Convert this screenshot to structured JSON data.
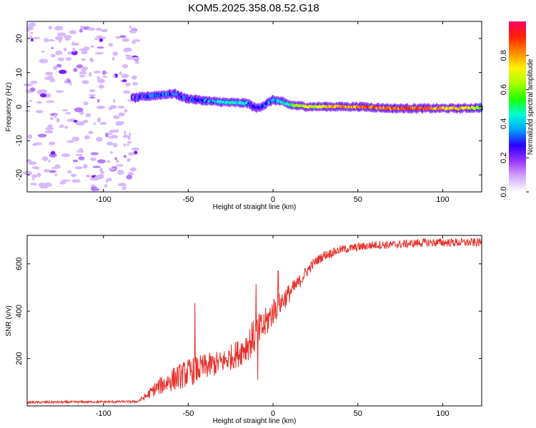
{
  "figure_title": "KOM5.2025.358.08.52.G18",
  "chart_data": [
    {
      "type": "heatmap",
      "title": "KOM5.2025.358.08.52.G18",
      "xlabel": "Height of straight line (km)",
      "ylabel": "Frequency (Hz)",
      "xlim": [
        -145,
        123
      ],
      "ylim": [
        -25,
        25
      ],
      "x_ticks": [
        -100,
        -50,
        0,
        50,
        100
      ],
      "y_ticks": [
        -20,
        -10,
        0,
        10,
        20
      ],
      "x_tick_labels": [
        "-100",
        "-50",
        "0",
        "50",
        "100"
      ],
      "y_tick_labels": [
        "-20",
        "-10",
        "0",
        "10",
        "20"
      ],
      "colorbar": {
        "label": "Normalized spectral amplitude",
        "range": [
          0,
          1
        ],
        "ticks": [
          0.0,
          0.2,
          0.4,
          0.6,
          0.8
        ],
        "tick_labels": [
          "0.0",
          "0.2",
          "0.4",
          "0.6",
          "0.8"
        ],
        "colormap": [
          "#ffffff",
          "#d4a7ff",
          "#9a33ff",
          "#2a00ff",
          "#00a2ff",
          "#00ffd5",
          "#22ff00",
          "#a8ff00",
          "#fff200",
          "#ff8800",
          "#ff2200",
          "#ff0066"
        ]
      },
      "signal_trace": {
        "description_points_x_km": [
          -83,
          -75,
          -65,
          -58,
          -52,
          -45,
          -35,
          -25,
          -15,
          -10,
          -5,
          0,
          5,
          10,
          20,
          30,
          50,
          70,
          90,
          110,
          123
        ],
        "frequency_hz": [
          2.5,
          3.0,
          3.5,
          3.8,
          2.5,
          2.0,
          1.5,
          1.2,
          1.0,
          -0.5,
          0.5,
          2.0,
          1.5,
          0.5,
          0.0,
          0.0,
          0.0,
          -0.5,
          -0.5,
          -0.5,
          -0.3
        ],
        "amplitude": [
          0.2,
          0.3,
          0.35,
          0.3,
          0.25,
          0.3,
          0.35,
          0.45,
          0.35,
          0.25,
          0.3,
          0.35,
          0.4,
          0.5,
          0.7,
          0.75,
          0.8,
          0.85,
          0.85,
          0.75,
          0.6
        ]
      },
      "noise_region_x_km": [
        -145,
        -80
      ]
    },
    {
      "type": "line",
      "xlabel": "Height of straight line (km)",
      "ylabel": "SNR (v/v)",
      "xlim": [
        -145,
        123
      ],
      "ylim": [
        0,
        720
      ],
      "x_ticks": [
        -100,
        -50,
        0,
        50,
        100
      ],
      "y_ticks": [
        200,
        400,
        600
      ],
      "x_tick_labels": [
        "-100",
        "-50",
        "0",
        "50",
        "100"
      ],
      "y_tick_labels": [
        "200",
        "400",
        "600"
      ],
      "series": [
        {
          "name": "SNR",
          "color": "#e8302a",
          "envelope_x": [
            -145,
            -80,
            -75,
            -70,
            -60,
            -50,
            -40,
            -30,
            -20,
            -15,
            -10,
            -5,
            0,
            5,
            10,
            15,
            20,
            25,
            30,
            40,
            50,
            60,
            70,
            80,
            90,
            100,
            110,
            123
          ],
          "envelope_y": [
            15,
            18,
            40,
            70,
            110,
            140,
            165,
            185,
            225,
            260,
            300,
            340,
            400,
            440,
            480,
            520,
            570,
            610,
            635,
            660,
            670,
            680,
            680,
            685,
            690,
            690,
            690,
            690
          ],
          "noise_amplitude": [
            5,
            5,
            15,
            30,
            50,
            60,
            55,
            50,
            60,
            70,
            80,
            70,
            60,
            50,
            40,
            30,
            25,
            20,
            20,
            18,
            18,
            18,
            18,
            18,
            18,
            18,
            18,
            18
          ],
          "spikes": [
            {
              "x": -46,
              "y": 435
            },
            {
              "x": -10,
              "y": 515
            },
            {
              "x": -9,
              "y": 110
            },
            {
              "x": 3,
              "y": 570
            }
          ]
        }
      ]
    }
  ]
}
